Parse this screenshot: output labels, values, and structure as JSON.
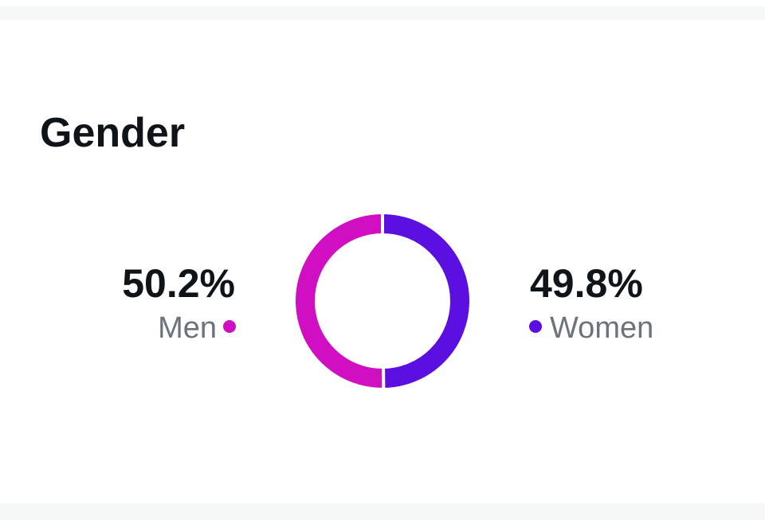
{
  "chart_data": {
    "type": "donut",
    "title": "Gender",
    "categories": [
      "Men",
      "Women"
    ],
    "values": [
      50.2,
      49.8
    ],
    "value_labels": [
      "50.2%",
      "49.8%"
    ],
    "colors": [
      "#d00fc3",
      "#5b0fe0"
    ]
  }
}
